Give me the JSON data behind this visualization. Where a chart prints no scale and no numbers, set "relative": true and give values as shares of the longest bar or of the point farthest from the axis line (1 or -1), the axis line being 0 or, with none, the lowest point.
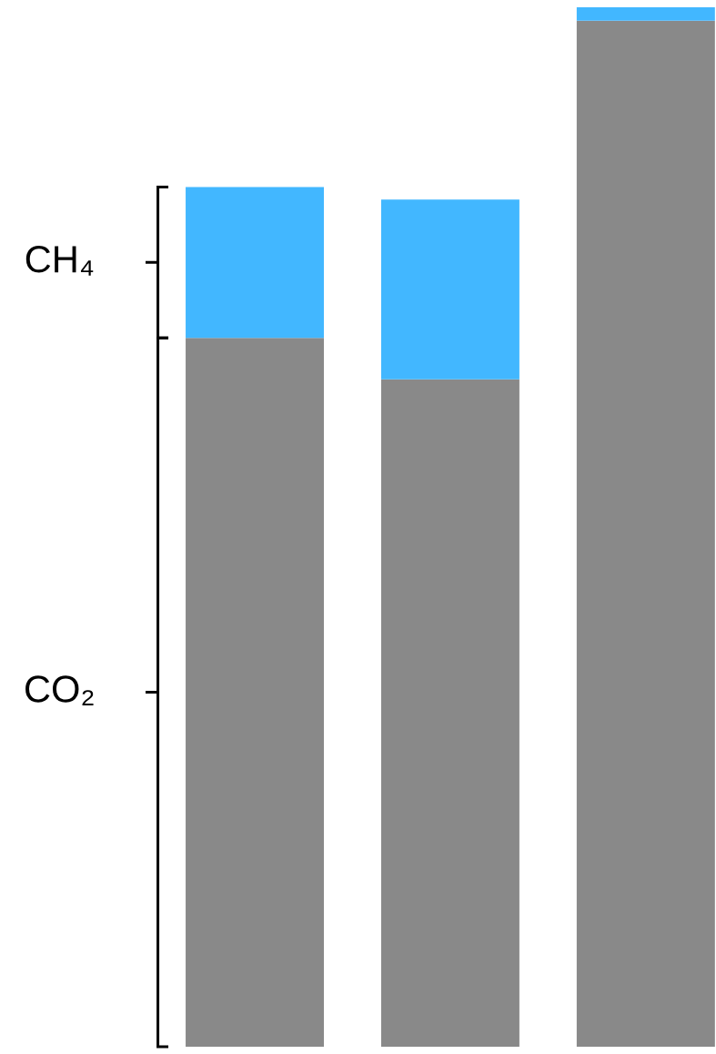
{
  "chart_data": {
    "type": "bar",
    "stacked": true,
    "relative": true,
    "legend": false,
    "categories": [
      null,
      null,
      null
    ],
    "series": [
      {
        "name": "CO₂",
        "color": "#898989",
        "values": [
          0.682,
          0.642,
          0.987
        ]
      },
      {
        "name": "CH₄",
        "color": "#42b7ff",
        "values": [
          0.145,
          0.173,
          0.013
        ]
      }
    ]
  }
}
